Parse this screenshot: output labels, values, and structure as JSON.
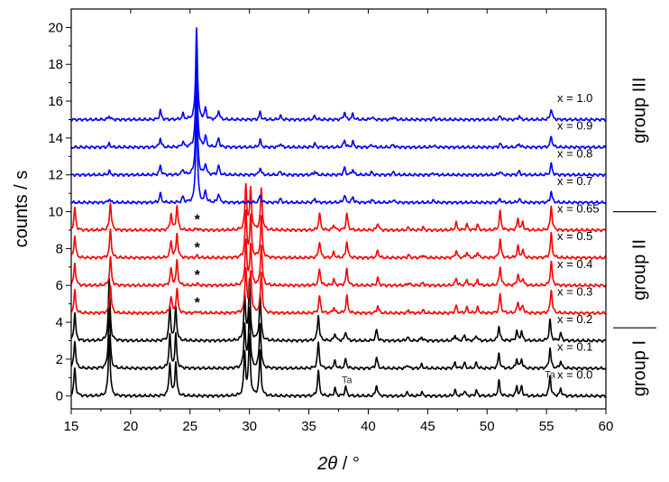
{
  "chart_data": {
    "type": "line",
    "xlabel": "2θ / °",
    "ylabel": "counts / s",
    "xlim": [
      15,
      60
    ],
    "ylim": [
      -0.7,
      21
    ],
    "x_ticks": [
      15,
      20,
      25,
      30,
      35,
      40,
      45,
      50,
      55,
      60
    ],
    "y_ticks": [
      0,
      2,
      4,
      6,
      8,
      10,
      12,
      14,
      16,
      18,
      20
    ],
    "grid": false,
    "colors": {
      "group I": "#000000",
      "group II": "#ff0000",
      "group III": "#0000ff"
    },
    "series": [
      {
        "name": "x = 0.0",
        "group": "group I",
        "color": "#000000",
        "baseline": 0.0
      },
      {
        "name": "x = 0.1",
        "group": "group I",
        "color": "#000000",
        "baseline": 1.5
      },
      {
        "name": "x = 0.2",
        "group": "group I",
        "color": "#000000",
        "baseline": 3.0
      },
      {
        "name": "x = 0.3",
        "group": "group II",
        "color": "#ff0000",
        "baseline": 4.5
      },
      {
        "name": "x = 0.4",
        "group": "group II",
        "color": "#ff0000",
        "baseline": 6.0
      },
      {
        "name": "x = 0.5",
        "group": "group II",
        "color": "#ff0000",
        "baseline": 7.5
      },
      {
        "name": "x = 0.65",
        "group": "group II",
        "color": "#ff0000",
        "baseline": 9.0
      },
      {
        "name": "x = 0.7",
        "group": "group III",
        "color": "#0000ff",
        "baseline": 10.5
      },
      {
        "name": "x = 0.8",
        "group": "group III",
        "color": "#0000ff",
        "baseline": 12.0
      },
      {
        "name": "x = 0.9",
        "group": "group III",
        "color": "#0000ff",
        "baseline": 13.5
      },
      {
        "name": "x = 1.0",
        "group": "group III",
        "color": "#0000ff",
        "baseline": 15.0
      }
    ],
    "peaks": {
      "group I": [
        [
          15.3,
          1.5
        ],
        [
          18.2,
          3.3
        ],
        [
          23.3,
          1.8
        ],
        [
          23.8,
          1.8
        ],
        [
          29.6,
          2.3
        ],
        [
          30.0,
          3.2
        ],
        [
          30.9,
          2.4
        ],
        [
          35.8,
          1.4
        ],
        [
          37.2,
          0.4
        ],
        [
          38.1,
          0.5
        ],
        [
          40.7,
          0.6
        ],
        [
          43.3,
          0.2
        ],
        [
          44.5,
          0.2
        ],
        [
          47.3,
          0.3
        ],
        [
          48.1,
          0.3
        ],
        [
          49.1,
          0.3
        ],
        [
          51.0,
          0.8
        ],
        [
          52.5,
          0.5
        ],
        [
          52.9,
          0.5
        ],
        [
          55.3,
          1.1
        ],
        [
          56.2,
          0.4
        ]
      ],
      "group II": [
        [
          15.3,
          1.2
        ],
        [
          18.3,
          1.5
        ],
        [
          23.4,
          0.9
        ],
        [
          23.9,
          1.3
        ],
        [
          25.6,
          0.1
        ],
        [
          29.7,
          2.4
        ],
        [
          30.1,
          2.2
        ],
        [
          31.0,
          2.2
        ],
        [
          35.9,
          0.9
        ],
        [
          37.1,
          0.3
        ],
        [
          38.2,
          0.9
        ],
        [
          40.8,
          0.4
        ],
        [
          43.4,
          0.15
        ],
        [
          44.6,
          0.15
        ],
        [
          47.4,
          0.4
        ],
        [
          48.3,
          0.3
        ],
        [
          49.2,
          0.3
        ],
        [
          51.1,
          1.0
        ],
        [
          52.6,
          0.6
        ],
        [
          53.0,
          0.4
        ],
        [
          55.4,
          1.3
        ]
      ],
      "group III": [
        [
          18.2,
          0.2
        ],
        [
          22.5,
          0.5
        ],
        [
          24.4,
          0.3
        ],
        [
          25.55,
          5.0
        ],
        [
          26.3,
          0.6
        ],
        [
          27.4,
          0.5
        ],
        [
          30.9,
          0.4
        ],
        [
          32.6,
          0.2
        ],
        [
          35.5,
          0.2
        ],
        [
          38.0,
          0.4
        ],
        [
          38.7,
          0.3
        ],
        [
          40.3,
          0.15
        ],
        [
          42.1,
          0.15
        ],
        [
          45.5,
          0.1
        ],
        [
          51.1,
          0.2
        ],
        [
          52.7,
          0.2
        ],
        [
          55.4,
          0.6
        ]
      ]
    },
    "annotations": {
      "stars": [
        {
          "x": 25.6,
          "y": 9.7,
          "text": "*"
        },
        {
          "x": 25.6,
          "y": 8.2,
          "text": "*"
        },
        {
          "x": 25.6,
          "y": 6.7,
          "text": "*"
        },
        {
          "x": 25.6,
          "y": 5.2,
          "text": "*"
        }
      ],
      "ta": [
        {
          "x": 38.2,
          "y": 0.7,
          "text": "Ta"
        },
        {
          "x": 55.3,
          "y": 1.0,
          "text": "Ta"
        }
      ]
    },
    "groups": [
      {
        "label": "group I",
        "y_from": -0.7,
        "y_to": 3.7
      },
      {
        "label": "group II",
        "y_from": 3.7,
        "y_to": 10.0
      },
      {
        "label": "group III",
        "y_from": 10.0,
        "y_to": 21.0
      }
    ]
  }
}
